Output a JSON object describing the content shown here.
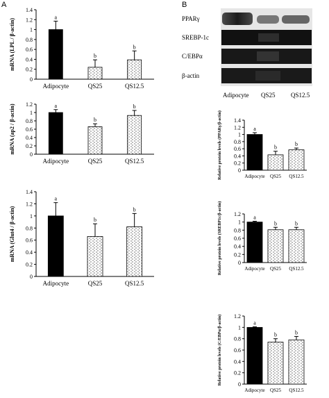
{
  "figure": {
    "panel_a": "A",
    "panel_b": "B"
  },
  "colors": {
    "adipocyte_bar": "#000000",
    "treatment_fill": "#ffffff",
    "hatch": "#444444",
    "axis": "#000000"
  },
  "blot": {
    "rows": [
      {
        "label": "PPARγ"
      },
      {
        "label": "SREBP-1c"
      },
      {
        "label": "C/EBPα"
      },
      {
        "label": "β-actin"
      }
    ],
    "lanes": [
      "Adipocyte",
      "QS25",
      "QS12.5"
    ]
  },
  "chart_data": [
    {
      "id": "lpl",
      "type": "bar",
      "ylabel": "mRNA (LPL / β-actin)",
      "categories": [
        "Adipocyte",
        "QS25",
        "QS12.5"
      ],
      "values": [
        1.0,
        0.24,
        0.39
      ],
      "errors": [
        0.17,
        0.15,
        0.18
      ],
      "letters": [
        "a",
        "b",
        "b"
      ],
      "ylim": [
        0,
        1.4
      ],
      "yticks": [
        "0",
        "0.2",
        "0.4",
        "0.6",
        "0.8",
        "1",
        "1.2",
        "1.4"
      ]
    },
    {
      "id": "ap2",
      "type": "bar",
      "ylabel": "mRNA (ap2 / β-actin)",
      "categories": [
        "Adipocyte",
        "QS25",
        "QS12.5"
      ],
      "values": [
        1.0,
        0.66,
        0.93
      ],
      "errors": [
        0.07,
        0.07,
        0.12
      ],
      "letters": [
        "a",
        "b",
        "b"
      ],
      "ylim": [
        0,
        1.2
      ],
      "yticks": [
        "0",
        "0.2",
        "0.4",
        "0.6",
        "0.8",
        "1",
        "1.2"
      ]
    },
    {
      "id": "glut4",
      "type": "bar",
      "ylabel": "mRNA (Glut4 / β-actin)",
      "categories": [
        "Adipocyte",
        "QS25",
        "QS12.5"
      ],
      "values": [
        1.0,
        0.66,
        0.82
      ],
      "errors": [
        0.22,
        0.21,
        0.22
      ],
      "letters": [
        "a",
        "b",
        "b"
      ],
      "ylim": [
        0,
        1.4
      ],
      "yticks": [
        "0",
        "0.2",
        "0.4",
        "0.6",
        "0.8",
        "1",
        "1.2",
        "1.4"
      ]
    },
    {
      "id": "ppar",
      "type": "bar",
      "ylabel": "Relative protein levels (PPARγ/β-actin)",
      "categories": [
        "Adipocyte",
        "QS25",
        "QS12.5"
      ],
      "values": [
        1.0,
        0.43,
        0.57
      ],
      "errors": [
        0.05,
        0.1,
        0.05
      ],
      "letters": [
        "a",
        "b",
        "b"
      ],
      "ylim": [
        0,
        1.4
      ],
      "yticks": [
        "0",
        "0.2",
        "0.4",
        "0.6",
        "0.8",
        "1",
        "1.2",
        "1.4"
      ]
    },
    {
      "id": "srebp",
      "type": "bar",
      "ylabel": "Relative protein levels (SREBP1c/β-actin)",
      "categories": [
        "Adipocyte",
        "QS25",
        "QS12.5"
      ],
      "values": [
        1.0,
        0.81,
        0.81
      ],
      "errors": [
        0.02,
        0.06,
        0.06
      ],
      "letters": [
        "a",
        "b",
        "b"
      ],
      "ylim": [
        0,
        1.2
      ],
      "yticks": [
        "0",
        "0.2",
        "0.4",
        "0.6",
        "0.8",
        "1",
        "1.2"
      ]
    },
    {
      "id": "cebp",
      "type": "bar",
      "ylabel": "Relative protein levels (C/EBPα/β-actin)",
      "categories": [
        "Adipocyte",
        "QS25",
        "QS12.5"
      ],
      "values": [
        1.0,
        0.74,
        0.78
      ],
      "errors": [
        0.01,
        0.06,
        0.06
      ],
      "letters": [
        "a",
        "b",
        "b"
      ],
      "ylim": [
        0,
        1.2
      ],
      "yticks": [
        "0",
        "0.2",
        "0.4",
        "0.6",
        "0.8",
        "1",
        "1.2"
      ]
    }
  ]
}
